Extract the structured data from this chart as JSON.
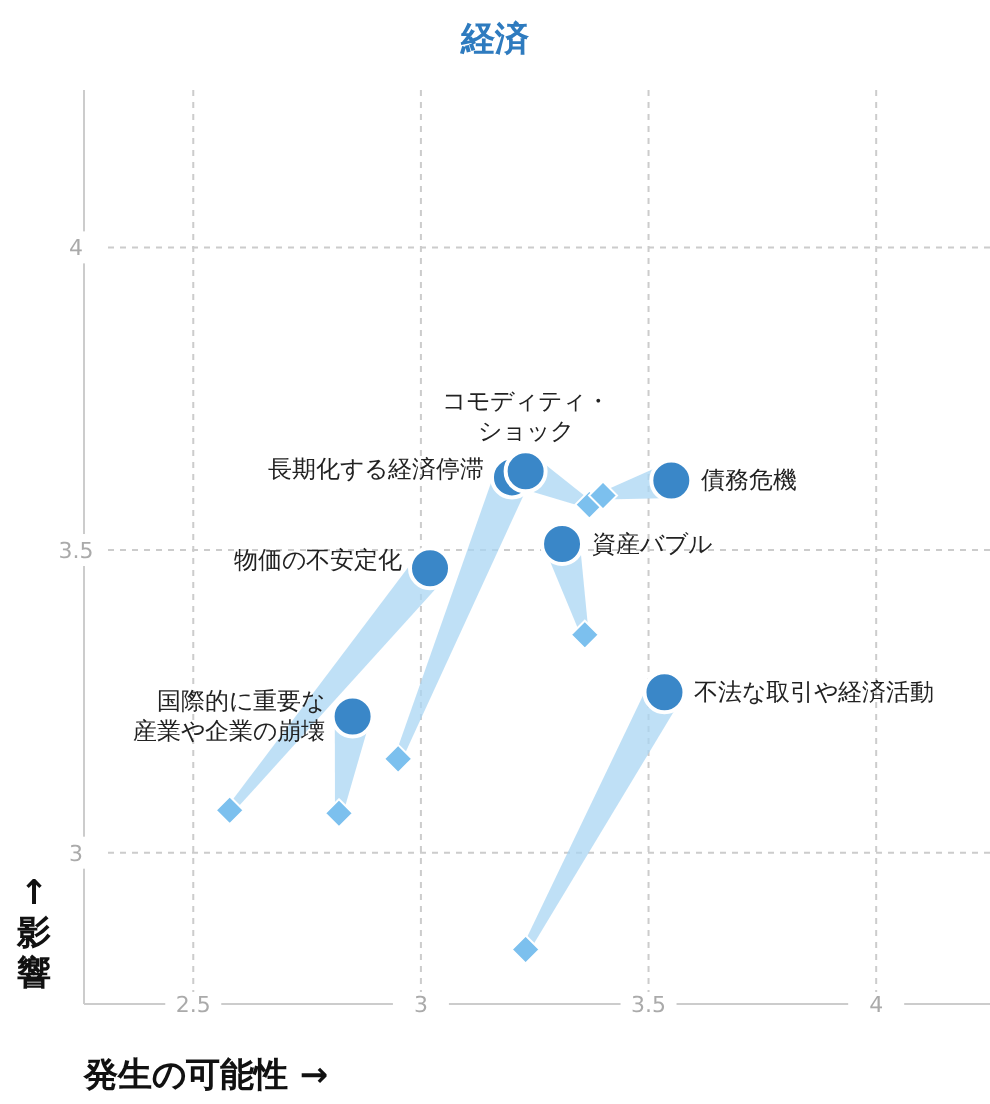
{
  "chart_data": {
    "type": "scatter",
    "title": "経済",
    "xlabel": "発生の可能性 →",
    "ylabel": "↑ 影響",
    "xlim": [
      2.26,
      4.25
    ],
    "ylim": [
      2.75,
      4.26
    ],
    "xticks": [
      2.5,
      3,
      3.5,
      4
    ],
    "yticks": [
      3,
      3.5,
      4
    ],
    "grid": true,
    "series": [
      {
        "color": "#7cc0ee",
        "marker": "diamond",
        "x": [
          2.58,
          2.95,
          3.37,
          3.4,
          3.36,
          2.82,
          3.23
        ],
        "values": [
          3.07,
          3.155,
          3.575,
          3.59,
          3.36,
          3.065,
          2.84
        ]
      },
      {
        "color": "#3a87c8",
        "marker": "circle",
        "x": [
          3.02,
          3.2,
          3.23,
          3.55,
          3.31,
          2.85,
          3.535
        ],
        "values": [
          3.47,
          3.62,
          3.63,
          3.615,
          3.51,
          3.225,
          3.265
        ]
      }
    ],
    "annotations": [
      {
        "text": "物価の不安定化",
        "x": 3.02,
        "y": 3.47
      },
      {
        "text": "長期化する経済停滞",
        "x": 3.2,
        "y": 3.62
      },
      {
        "text": "コモディティ・ショック",
        "x": 3.23,
        "y": 3.63
      },
      {
        "text": "債務危機",
        "x": 3.55,
        "y": 3.615
      },
      {
        "text": "資産バブル",
        "x": 3.31,
        "y": 3.51
      },
      {
        "text": "国際的に重要な産業や企業の崩壊",
        "x": 2.85,
        "y": 3.225
      },
      {
        "text": "不法な取引や経済活動",
        "x": 3.535,
        "y": 3.265
      }
    ]
  }
}
